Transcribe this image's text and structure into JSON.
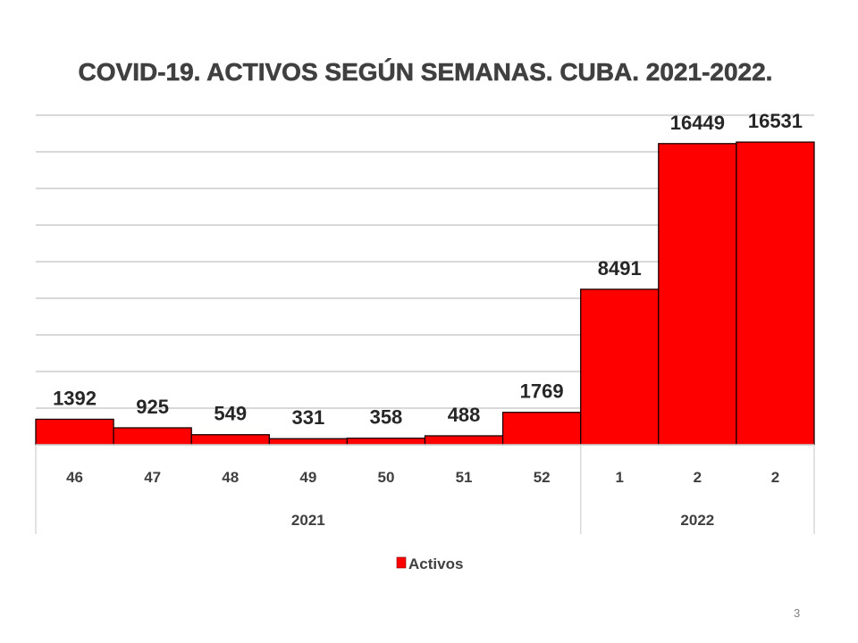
{
  "chart_data": {
    "type": "bar",
    "title": "COVID-19. ACTIVOS SEGÚN SEMANAS. CUBA. 2021-2022.",
    "xlabel": "",
    "ylabel": "",
    "categories": [
      "46",
      "47",
      "48",
      "49",
      "50",
      "51",
      "52",
      "1",
      "2",
      "2"
    ],
    "category_groups": [
      {
        "label": "2021",
        "count": 7
      },
      {
        "label": "2022",
        "count": 3
      }
    ],
    "series": [
      {
        "name": "Activos",
        "color": "#ff0000",
        "values": [
          1392,
          925,
          549,
          331,
          358,
          488,
          1769,
          8491,
          16449,
          16531
        ]
      }
    ],
    "ylim": [
      0,
      18000
    ],
    "y_grid_step": 2000,
    "grid": true,
    "y_axis_labels_shown": false,
    "legend": {
      "position": "bottom",
      "entries": [
        "Activos"
      ]
    }
  },
  "page": {
    "number": "3"
  }
}
